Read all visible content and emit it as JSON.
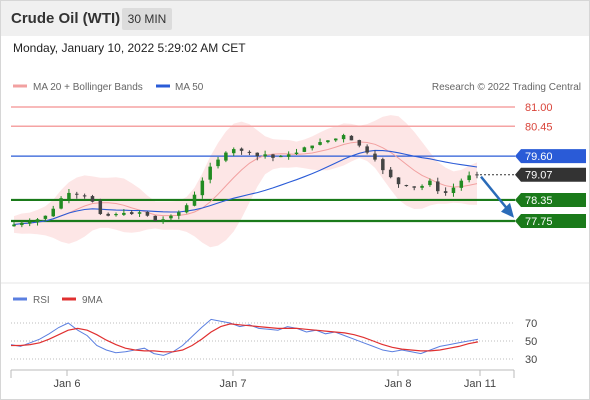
{
  "header": {
    "instrument": "Crude Oil (WTI)",
    "timeframe": "30 MIN"
  },
  "datetime": "Monday, January 10, 2022 5:29:02 AM CET",
  "legend": {
    "ma20_label": "MA 20 + Bollinger Bands",
    "ma50_label": "MA 50",
    "credit": "Research © 2022 Trading Central"
  },
  "rsi_legend": {
    "rsi_label": "RSI",
    "ma_label": "9MA"
  },
  "colors": {
    "resistance": "#f5a3a3",
    "resistance_text": "#d9443a",
    "ma50": "#2a5bd7",
    "support": "#1a7a1a",
    "candle_up": "#228b22",
    "candle_down": "#444444",
    "bollinger_fill": "#fde0e0",
    "ma20": "#f2a0a0",
    "rsi": "#5b7fe0",
    "rsi_ma": "#e03030",
    "current_price": "#333333",
    "arrow": "#2a6bb8"
  },
  "chart_data": [
    {
      "type": "candlestick",
      "title": "Crude Oil (WTI)",
      "timeframe": "30 MIN",
      "x_ticks": [
        "Jan 6",
        "Jan 7",
        "Jan 8",
        "Jan 11"
      ],
      "ylim": [
        77.0,
        81.25
      ],
      "levels": [
        {
          "value": 81.0,
          "label": "81.00",
          "kind": "resistance"
        },
        {
          "value": 80.45,
          "label": "80.45",
          "kind": "resistance"
        },
        {
          "value": 79.6,
          "label": "79.60",
          "kind": "ma50"
        },
        {
          "value": 79.07,
          "label": "79.07",
          "kind": "current"
        },
        {
          "value": 78.35,
          "label": "78.35",
          "kind": "support"
        },
        {
          "value": 77.75,
          "label": "77.75",
          "kind": "support"
        }
      ],
      "close_path": [
        77.65,
        77.7,
        77.72,
        77.8,
        77.9,
        78.1,
        78.4,
        78.55,
        78.5,
        78.45,
        78.3,
        77.95,
        77.9,
        77.95,
        77.98,
        77.95,
        78.0,
        77.9,
        77.75,
        77.8,
        77.9,
        78.0,
        78.2,
        78.5,
        78.9,
        79.3,
        79.5,
        79.7,
        79.8,
        79.75,
        79.7,
        79.6,
        79.65,
        79.55,
        79.6,
        79.65,
        79.7,
        79.85,
        79.9,
        80.0,
        80.05,
        80.1,
        80.2,
        80.05,
        79.9,
        79.7,
        79.5,
        79.2,
        79.0,
        78.8,
        78.75,
        78.7,
        78.75,
        78.9,
        78.6,
        78.55,
        78.7,
        78.9,
        79.05,
        79.07
      ],
      "series": [
        {
          "name": "MA 20 + Bollinger Bands"
        },
        {
          "name": "MA 50"
        }
      ]
    },
    {
      "type": "line",
      "y_ticks": [
        70,
        50,
        30
      ],
      "ylim": [
        20,
        80
      ],
      "series": [
        {
          "name": "RSI",
          "values": [
            46,
            44,
            48,
            52,
            58,
            65,
            70,
            62,
            56,
            45,
            40,
            37,
            38,
            40,
            42,
            36,
            34,
            38,
            45,
            55,
            65,
            74,
            72,
            70,
            66,
            68,
            64,
            63,
            62,
            66,
            64,
            60,
            62,
            58,
            60,
            56,
            52,
            48,
            44,
            40,
            38,
            40,
            38,
            36,
            40,
            44,
            46,
            48,
            50,
            52
          ]
        },
        {
          "name": "9MA",
          "values": [
            45,
            45,
            46,
            48,
            52,
            57,
            62,
            64,
            62,
            57,
            51,
            46,
            42,
            40,
            39,
            39,
            38,
            38,
            40,
            45,
            52,
            60,
            66,
            69,
            68,
            67,
            66,
            65,
            64,
            64,
            64,
            63,
            62,
            61,
            60,
            59,
            57,
            54,
            50,
            46,
            43,
            41,
            40,
            39,
            39,
            40,
            42,
            44,
            47,
            49
          ]
        }
      ]
    }
  ]
}
